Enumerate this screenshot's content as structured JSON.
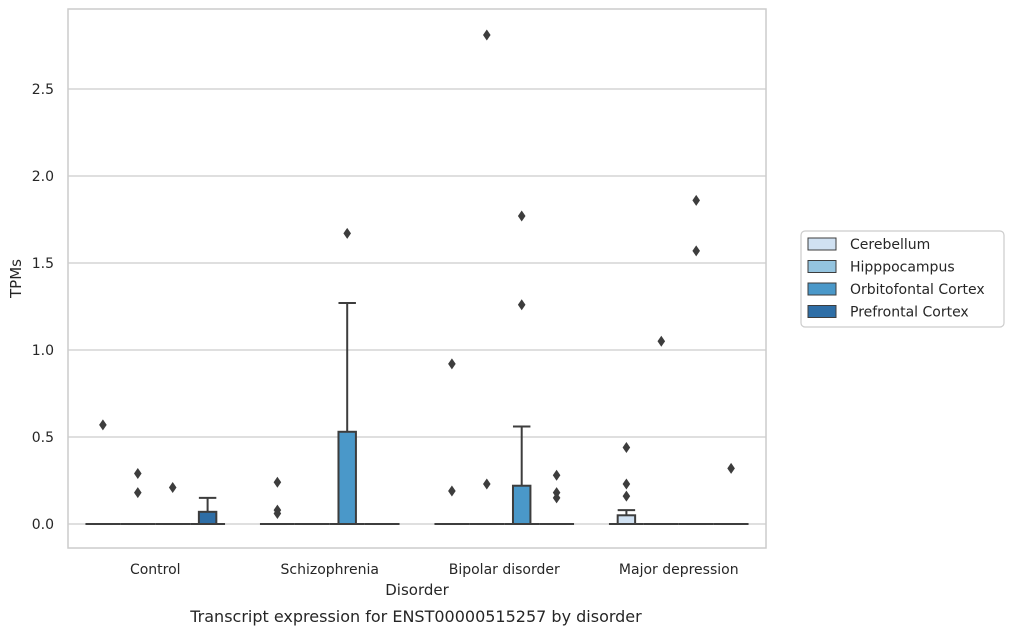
{
  "chart_data": {
    "type": "box",
    "caption": "Transcript expression for ENST00000515257 by disorder",
    "xlabel": "Disorder",
    "ylabel": "TPMs",
    "ylim": [
      -0.14,
      2.9
    ],
    "yticks": [
      0.0,
      0.5,
      1.0,
      1.5,
      2.0,
      2.5
    ],
    "ytick_labels": [
      "0.0",
      "0.5",
      "1.0",
      "1.5",
      "2.0",
      "2.5"
    ],
    "grid": "horizontal",
    "legend_position": "right",
    "categories": [
      "Control",
      "Schizophrenia",
      "Bipolar disorder",
      "Major depression"
    ],
    "series": [
      {
        "name": "Cerebellum",
        "color": "#d0e1f2",
        "boxes": [
          {
            "q1": 0,
            "median": 0,
            "q3": 0,
            "whislo": 0,
            "whishi": 0,
            "fliers": [
              0.57
            ]
          },
          {
            "q1": 0,
            "median": 0,
            "q3": 0,
            "whislo": 0,
            "whishi": 0,
            "fliers": [
              0.24,
              0.08,
              0.06
            ]
          },
          {
            "q1": 0,
            "median": 0,
            "q3": 0,
            "whislo": 0,
            "whishi": 0,
            "fliers": [
              0.92,
              0.19
            ]
          },
          {
            "q1": 0,
            "median": 0,
            "q3": 0.05,
            "whislo": 0,
            "whishi": 0.08,
            "fliers": [
              0.44,
              0.23,
              0.16
            ]
          }
        ]
      },
      {
        "name": "Hipppocampus",
        "color": "#94c4df",
        "boxes": [
          {
            "q1": 0,
            "median": 0,
            "q3": 0,
            "whislo": 0,
            "whishi": 0,
            "fliers": [
              0.29,
              0.18
            ]
          },
          {
            "q1": 0,
            "median": 0,
            "q3": 0,
            "whislo": 0,
            "whishi": 0,
            "fliers": []
          },
          {
            "q1": 0,
            "median": 0,
            "q3": 0,
            "whislo": 0,
            "whishi": 0,
            "fliers": [
              2.81,
              0.23
            ]
          },
          {
            "q1": 0,
            "median": 0,
            "q3": 0,
            "whislo": 0,
            "whishi": 0,
            "fliers": [
              1.05
            ]
          }
        ]
      },
      {
        "name": "Orbitofontal Cortex",
        "color": "#4a98c9",
        "boxes": [
          {
            "q1": 0,
            "median": 0,
            "q3": 0,
            "whislo": 0,
            "whishi": 0,
            "fliers": [
              0.21
            ]
          },
          {
            "q1": 0,
            "median": 0,
            "q3": 0.53,
            "whislo": 0,
            "whishi": 1.27,
            "fliers": [
              1.67
            ]
          },
          {
            "q1": 0,
            "median": 0,
            "q3": 0.22,
            "whislo": 0,
            "whishi": 0.56,
            "fliers": [
              1.77,
              1.26
            ]
          },
          {
            "q1": 0,
            "median": 0,
            "q3": 0,
            "whislo": 0,
            "whishi": 0,
            "fliers": [
              1.86,
              1.57
            ]
          }
        ]
      },
      {
        "name": "Prefrontal Cortex",
        "color": "#2e6ea6",
        "boxes": [
          {
            "q1": 0,
            "median": 0,
            "q3": 0.07,
            "whislo": 0,
            "whishi": 0.15,
            "fliers": []
          },
          {
            "q1": 0,
            "median": 0,
            "q3": 0,
            "whislo": 0,
            "whishi": 0,
            "fliers": []
          },
          {
            "q1": 0,
            "median": 0,
            "q3": 0,
            "whislo": 0,
            "whishi": 0,
            "fliers": [
              0.28,
              0.18,
              0.15
            ]
          },
          {
            "q1": 0,
            "median": 0,
            "q3": 0,
            "whislo": 0,
            "whishi": 0,
            "fliers": [
              0.32
            ]
          }
        ]
      }
    ]
  }
}
